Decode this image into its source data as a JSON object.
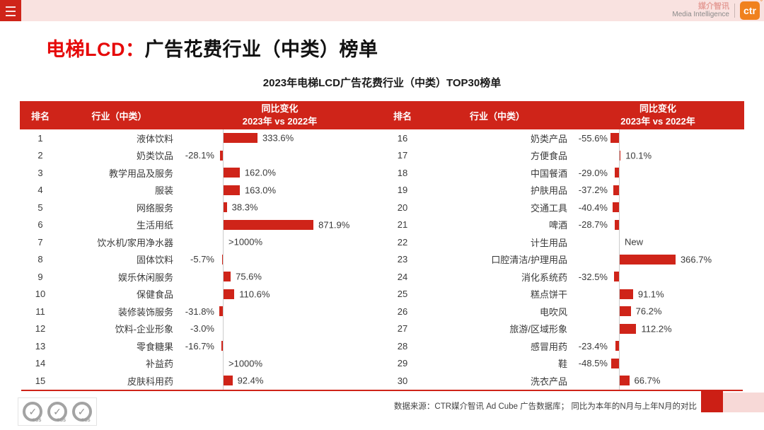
{
  "topbar": {
    "menu_icon": "hamburger-icon",
    "brand_cn": "媒介智讯",
    "brand_en": "Media Intelligence",
    "logo_text": "ctr"
  },
  "title": {
    "highlight": "电梯LCD：",
    "rest": "广告花费行业（中类）榜单"
  },
  "chart_data": {
    "type": "bar",
    "title": "2023年电梯LCD广告花费行业（中类）TOP30榜单",
    "unit": "%",
    "legend": "同比变化（2023年 vs 2022年），红色条形图，负值向左、正值向右",
    "header": {
      "rank": "排名",
      "industry": "行业（中类）",
      "change_line1": "同比变化",
      "change_line2": "2023年 vs 2022年"
    },
    "tables": [
      {
        "rows": [
          {
            "rank": "1",
            "industry": "液体饮料",
            "value": 333.6,
            "label": "333.6%"
          },
          {
            "rank": "2",
            "industry": "奶类饮品",
            "value": -28.1,
            "label": "-28.1%"
          },
          {
            "rank": "3",
            "industry": "教学用品及服务",
            "value": 162.0,
            "label": "162.0%"
          },
          {
            "rank": "4",
            "industry": "服装",
            "value": 163.0,
            "label": "163.0%"
          },
          {
            "rank": "5",
            "industry": "网络服务",
            "value": 38.3,
            "label": "38.3%"
          },
          {
            "rank": "6",
            "industry": "生活用纸",
            "value": 871.9,
            "label": "871.9%"
          },
          {
            "rank": "7",
            "industry": "饮水机/家用净水器",
            "value": null,
            "label": ">1000%"
          },
          {
            "rank": "8",
            "industry": "固体饮料",
            "value": -5.7,
            "label": "-5.7%"
          },
          {
            "rank": "9",
            "industry": "娱乐休闲服务",
            "value": 75.6,
            "label": "75.6%"
          },
          {
            "rank": "10",
            "industry": "保健食品",
            "value": 110.6,
            "label": "110.6%"
          },
          {
            "rank": "11",
            "industry": "装修装饰服务",
            "value": -31.8,
            "label": "-31.8%"
          },
          {
            "rank": "12",
            "industry": "饮料-企业形象",
            "value": -3.0,
            "label": "-3.0%"
          },
          {
            "rank": "13",
            "industry": "零食糖果",
            "value": -16.7,
            "label": "-16.7%"
          },
          {
            "rank": "14",
            "industry": "补益药",
            "value": null,
            "label": ">1000%"
          },
          {
            "rank": "15",
            "industry": "皮肤科用药",
            "value": 92.4,
            "label": "92.4%"
          }
        ]
      },
      {
        "rows": [
          {
            "rank": "16",
            "industry": "奶类产品",
            "value": -55.6,
            "label": "-55.6%"
          },
          {
            "rank": "17",
            "industry": "方便食品",
            "value": 10.1,
            "label": "10.1%"
          },
          {
            "rank": "18",
            "industry": "中国餐酒",
            "value": -29.0,
            "label": "-29.0%"
          },
          {
            "rank": "19",
            "industry": "护肤用品",
            "value": -37.2,
            "label": "-37.2%"
          },
          {
            "rank": "20",
            "industry": "交通工具",
            "value": -40.4,
            "label": "-40.4%"
          },
          {
            "rank": "21",
            "industry": "啤酒",
            "value": -28.7,
            "label": "-28.7%"
          },
          {
            "rank": "22",
            "industry": "计生用品",
            "value": null,
            "label": "New"
          },
          {
            "rank": "23",
            "industry": "口腔清洁/护理用品",
            "value": 366.7,
            "label": "366.7%"
          },
          {
            "rank": "24",
            "industry": "消化系统药",
            "value": -32.5,
            "label": "-32.5%"
          },
          {
            "rank": "25",
            "industry": "糕点饼干",
            "value": 91.1,
            "label": "91.1%"
          },
          {
            "rank": "26",
            "industry": "电吹风",
            "value": 76.2,
            "label": "76.2%"
          },
          {
            "rank": "27",
            "industry": "旅游/区域形象",
            "value": 112.2,
            "label": "112.2%"
          },
          {
            "rank": "28",
            "industry": "感冒用药",
            "value": -23.4,
            "label": "-23.4%"
          },
          {
            "rank": "29",
            "industry": "鞋",
            "value": -48.5,
            "label": "-48.5%"
          },
          {
            "rank": "30",
            "industry": "洗衣产品",
            "value": 66.7,
            "label": "66.7%"
          }
        ]
      }
    ]
  },
  "footer": {
    "source": "数据来源：CTR媒介智讯 Ad Cube 广告数据库；  同比为本年的N月与上年N月的对比",
    "sgs_label": "SGS",
    "sgs_check": "✓"
  },
  "colors": {
    "primary_red": "#cf2419",
    "title_red": "#e60a0a",
    "topbar_pink": "#f9e2e0",
    "ctr_orange": "#f0811e",
    "accent_pink": "#f7d9d7",
    "baseline_gray": "#cccccc"
  }
}
